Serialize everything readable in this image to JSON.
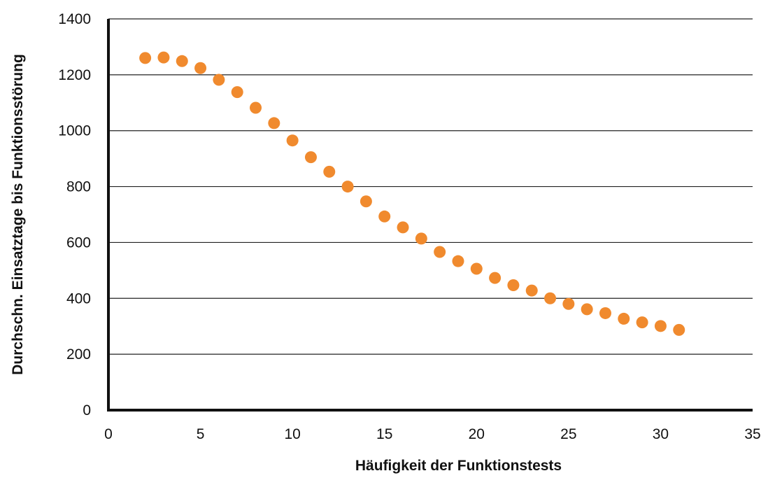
{
  "chart_data": {
    "type": "scatter",
    "title": "",
    "xlabel": "Häufigkeit der Funktionstests",
    "ylabel": "Durchschn. Einsatztage bis Funktionsstörung",
    "xlim": [
      0,
      35
    ],
    "ylim": [
      0,
      1400
    ],
    "x_ticks": [
      "0",
      "5",
      "10",
      "15",
      "20",
      "25",
      "30",
      "35"
    ],
    "y_ticks": [
      "0",
      "200",
      "400",
      "600",
      "800",
      "1000",
      "1200",
      "1400"
    ],
    "grid": "horizontal",
    "legend": "none",
    "marker_color": "#f08a2e",
    "series": [
      {
        "x": [
          2,
          3,
          4,
          5,
          6,
          7,
          8,
          9,
          10,
          11,
          12,
          13,
          14,
          15,
          16,
          17,
          18,
          19,
          20,
          21,
          22,
          23,
          24,
          25,
          26,
          27,
          28,
          29,
          30,
          31
        ],
        "values": [
          1260,
          1262,
          1249,
          1224,
          1182,
          1138,
          1082,
          1027,
          965,
          905,
          853,
          800,
          747,
          693,
          654,
          614,
          566,
          533,
          506,
          473,
          447,
          428,
          400,
          380,
          361,
          347,
          327,
          314,
          301,
          287
        ]
      }
    ]
  }
}
